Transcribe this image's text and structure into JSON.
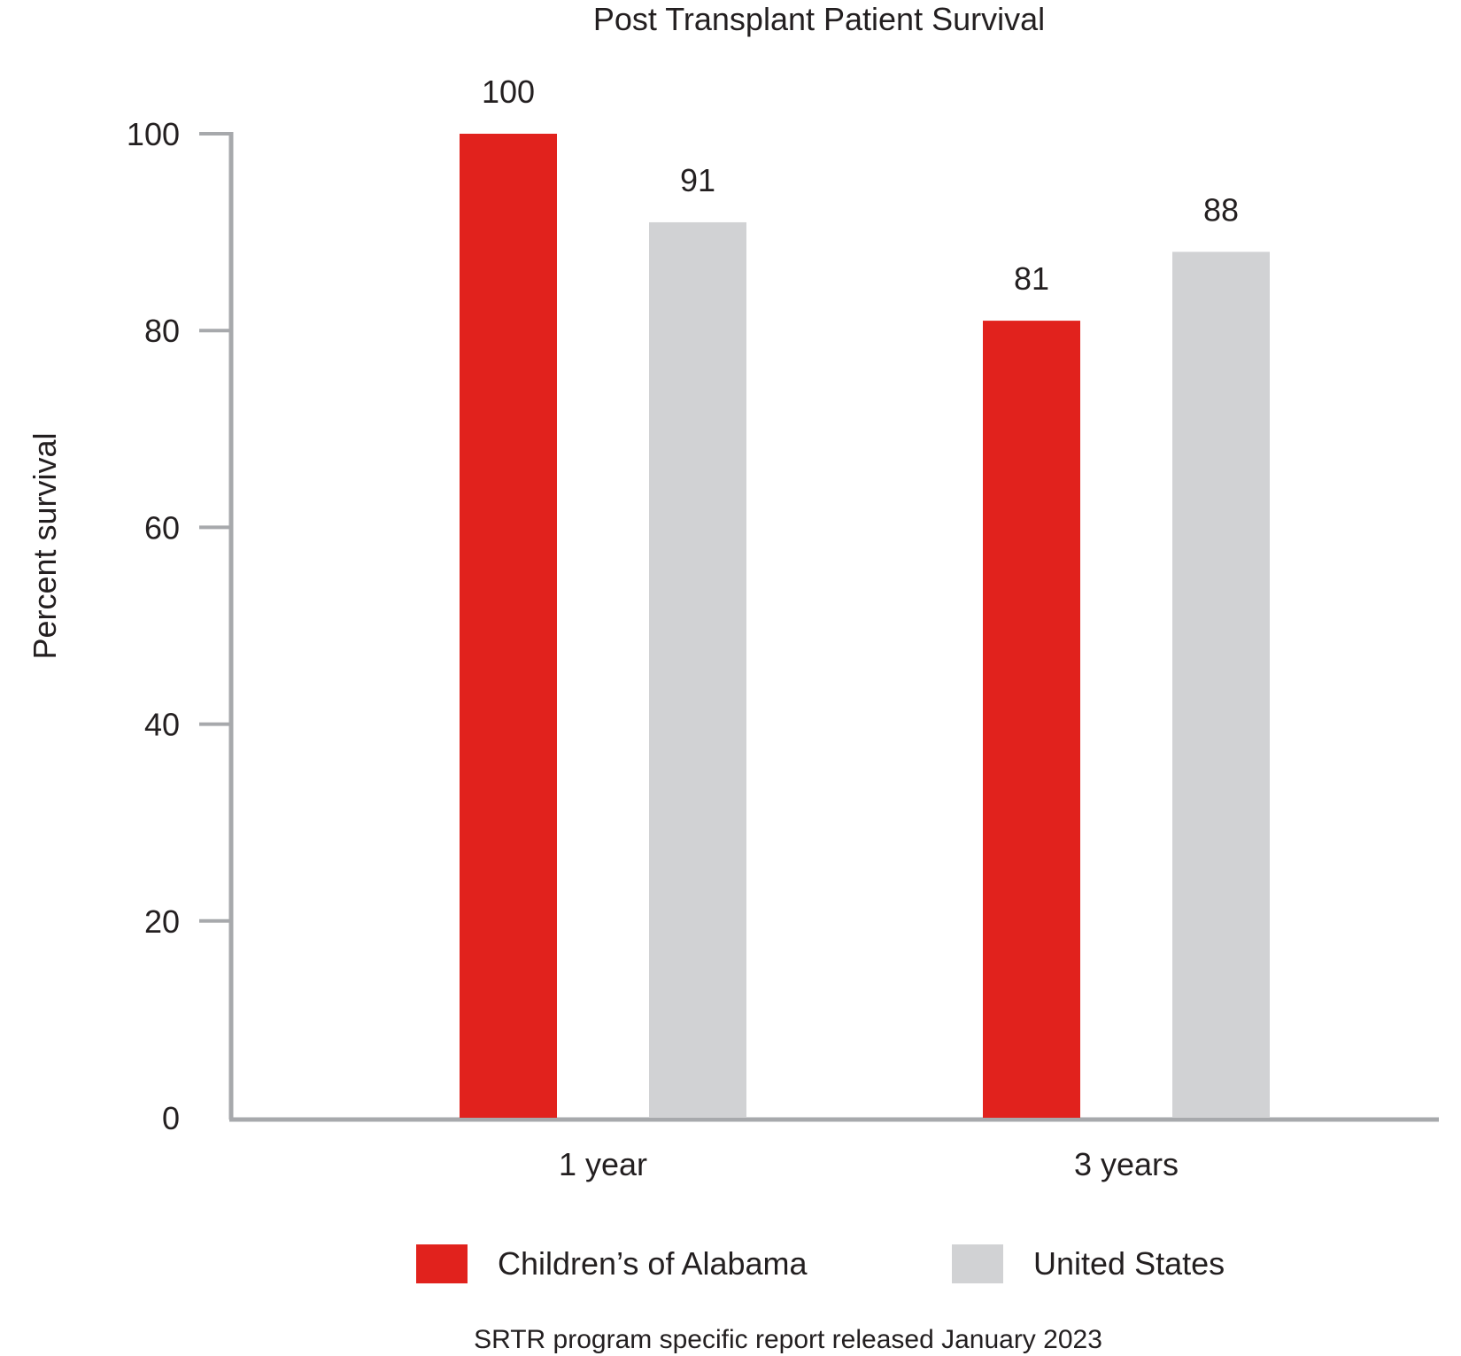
{
  "chart_data": {
    "type": "bar",
    "title": "Post Transplant Patient Survival",
    "xlabel": "",
    "ylabel": "Percent survival",
    "categories": [
      "1 year",
      "3 years"
    ],
    "series": [
      {
        "name": "Children’s of Alabama",
        "values": [
          100,
          81
        ],
        "color": "#e1221d"
      },
      {
        "name": "United States",
        "values": [
          91,
          88
        ],
        "color": "#d1d2d4"
      }
    ],
    "ylim": [
      0,
      100
    ],
    "yticks": [
      "0",
      "20",
      "40",
      "60",
      "80",
      "100"
    ],
    "data_labels": [
      [
        "100",
        "81"
      ],
      [
        "91",
        "88"
      ]
    ],
    "grid": false,
    "legend_position": "bottom",
    "axis_color": "#a7a9ac"
  },
  "footnote": "SRTR program specific report released January 2023"
}
